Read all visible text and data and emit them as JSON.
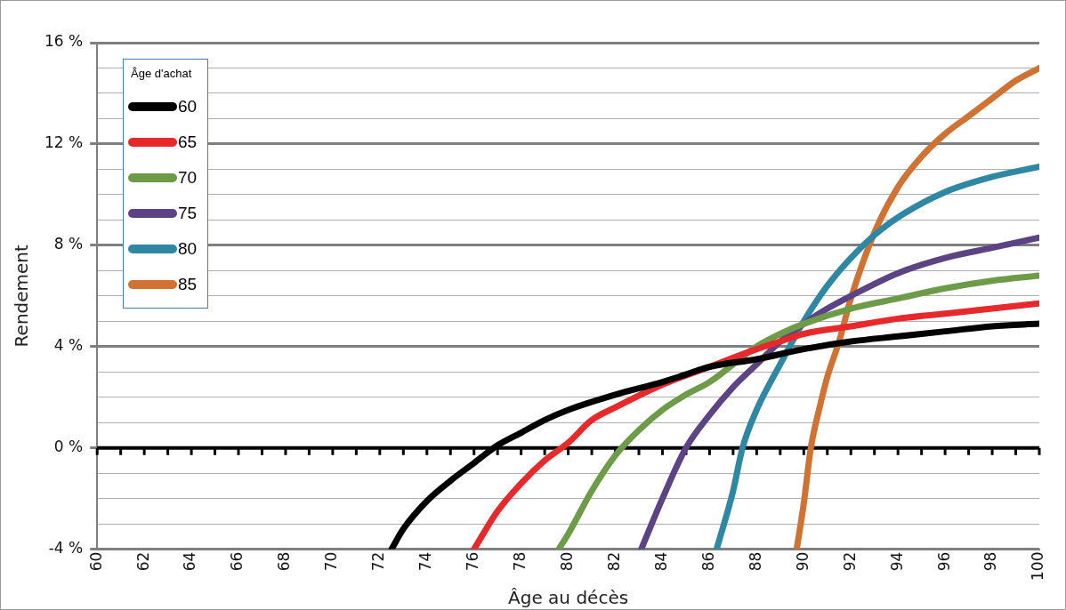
{
  "chart_data": {
    "type": "line",
    "xlabel": "Âge au décès",
    "ylabel": "Rendement",
    "legend_title": "Âge d'achat",
    "legend": "top left",
    "grid": "y",
    "marker": "none",
    "line_style": "solid",
    "xlim": [
      60,
      100
    ],
    "ylim": [
      -4,
      16
    ],
    "xticks": [
      60,
      {
        "value": 61,
        "label": null
      },
      62,
      {
        "value": 63,
        "label": null
      },
      64,
      {
        "value": 65,
        "label": null
      },
      66,
      {
        "value": 67,
        "label": null
      },
      68,
      {
        "value": 69,
        "label": null
      },
      70,
      {
        "value": 71,
        "label": null
      },
      72,
      {
        "value": 73,
        "label": null
      },
      74,
      {
        "value": 75,
        "label": null
      },
      76,
      {
        "value": 77,
        "label": null
      },
      78,
      {
        "value": 79,
        "label": null
      },
      80,
      {
        "value": 81,
        "label": null
      },
      82,
      {
        "value": 83,
        "label": null
      },
      84,
      {
        "value": 85,
        "label": null
      },
      86,
      {
        "value": 87,
        "label": null
      },
      88,
      {
        "value": 89,
        "label": null
      },
      90,
      {
        "value": 91,
        "label": null
      },
      92,
      {
        "value": 93,
        "label": null
      },
      94,
      {
        "value": 95,
        "label": null
      },
      96,
      {
        "value": 97,
        "label": null
      },
      98,
      {
        "value": 99,
        "label": null
      },
      100
    ],
    "yticks": [
      {
        "value": -4,
        "label": "-4 %"
      },
      {
        "value": -3,
        "label": null
      },
      {
        "value": -2,
        "label": null
      },
      {
        "value": -1,
        "label": null
      },
      {
        "value": 0,
        "label": "0 %"
      },
      {
        "value": 1,
        "label": null
      },
      {
        "value": 2,
        "label": null
      },
      {
        "value": 3,
        "label": null
      },
      {
        "value": 4,
        "label": "4 %"
      },
      {
        "value": 5,
        "label": null
      },
      {
        "value": 6,
        "label": null
      },
      {
        "value": 7,
        "label": null
      },
      {
        "value": 8,
        "label": "8 %"
      },
      {
        "value": 9,
        "label": null
      },
      {
        "value": 10,
        "label": null
      },
      {
        "value": 11,
        "label": null
      },
      {
        "value": 12,
        "label": "12 %"
      },
      {
        "value": 13,
        "label": null
      },
      {
        "value": 14,
        "label": null
      },
      {
        "value": 15,
        "label": null
      },
      {
        "value": 16,
        "label": "16 %"
      }
    ],
    "ref_lines": [
      {
        "axis": "y",
        "value": 0,
        "color": "#000000"
      }
    ],
    "series": [
      {
        "name": "60",
        "color": "#000000",
        "x": [
          72.5,
          73,
          74,
          75,
          76,
          77,
          78,
          79,
          80,
          82,
          84,
          85,
          86,
          88,
          90,
          92,
          94,
          96,
          98,
          100
        ],
        "values": [
          -4,
          -3.2,
          -2.1,
          -1.3,
          -0.6,
          0.1,
          0.6,
          1.1,
          1.5,
          2.1,
          2.6,
          2.9,
          3.2,
          3.5,
          3.9,
          4.2,
          4.4,
          4.6,
          4.8,
          4.9
        ]
      },
      {
        "name": "65",
        "color": "#e8292b",
        "x": [
          76,
          77,
          78,
          79,
          80,
          81,
          82,
          84,
          86,
          88,
          89,
          90,
          92,
          94,
          96,
          98,
          100
        ],
        "values": [
          -4,
          -2.5,
          -1.4,
          -0.5,
          0.2,
          1.1,
          1.6,
          2.5,
          3.2,
          3.9,
          4.2,
          4.5,
          4.8,
          5.1,
          5.3,
          5.5,
          5.7
        ]
      },
      {
        "name": "70",
        "color": "#6e9b48",
        "x": [
          79.6,
          80,
          81,
          82,
          83,
          84,
          85,
          86,
          88,
          89,
          90,
          92,
          94,
          96,
          98,
          100
        ],
        "values": [
          -4,
          -3.4,
          -1.7,
          -0.3,
          0.7,
          1.5,
          2.1,
          2.6,
          4.0,
          4.5,
          4.9,
          5.5,
          5.9,
          6.3,
          6.6,
          6.8
        ]
      },
      {
        "name": "75",
        "color": "#5b4384",
        "x": [
          83.1,
          84,
          85,
          86,
          87,
          88,
          89,
          90,
          91,
          92,
          94,
          96,
          98,
          100
        ],
        "values": [
          -4,
          -2,
          0,
          1.3,
          2.4,
          3.3,
          4.2,
          4.9,
          5.5,
          6.0,
          6.9,
          7.5,
          7.9,
          8.3
        ]
      },
      {
        "name": "80",
        "color": "#2e88a4",
        "x": [
          86.3,
          87,
          87.4,
          88,
          89,
          90,
          91,
          92,
          93,
          94,
          96,
          98,
          100
        ],
        "values": [
          -4,
          -1.7,
          0,
          1.5,
          3.3,
          5.0,
          6.4,
          7.5,
          8.4,
          9.1,
          10.1,
          10.7,
          11.1
        ]
      },
      {
        "name": "85",
        "color": "#d07232",
        "x": [
          89.7,
          90,
          90.3,
          90.7,
          91,
          91.5,
          92,
          93,
          94,
          95,
          96,
          97,
          98,
          99,
          100
        ],
        "values": [
          -4,
          -2.2,
          0,
          1.7,
          2.8,
          4.2,
          5.9,
          8.5,
          10.3,
          11.5,
          12.4,
          13.1,
          13.8,
          14.5,
          15.0
        ]
      }
    ]
  }
}
